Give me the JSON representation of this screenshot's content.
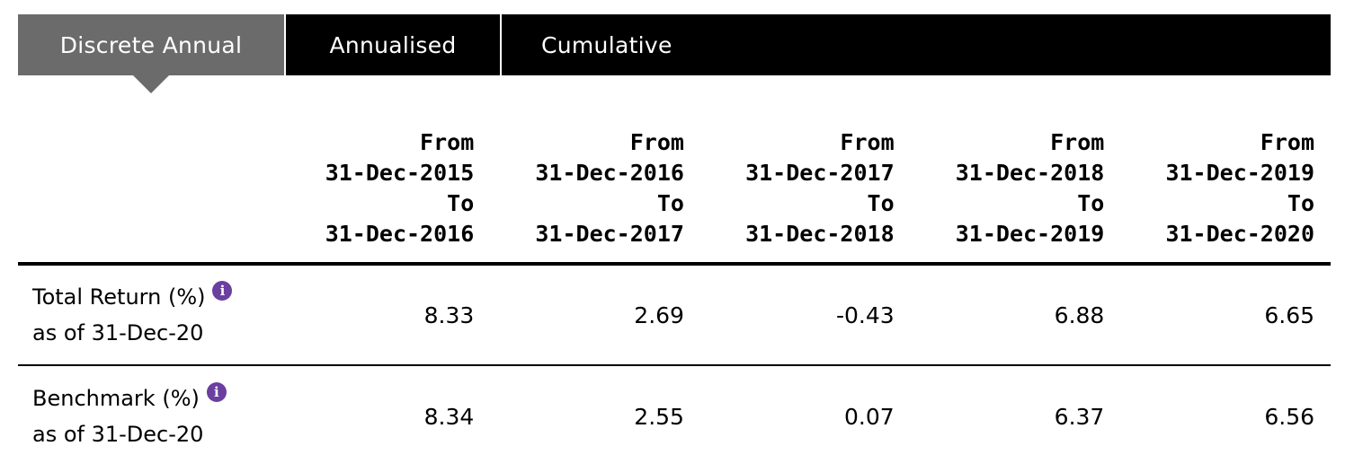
{
  "tabs": [
    {
      "label": "Discrete Annual",
      "active": true
    },
    {
      "label": "Annualised",
      "active": false
    },
    {
      "label": "Cumulative",
      "active": false
    }
  ],
  "colors": {
    "active_tab": "#6b6b6b",
    "inactive_tab": "#000000",
    "info_icon": "#6a3fa0"
  },
  "columns": [
    {
      "from_label": "From",
      "from_date": "31-Dec-2015",
      "to_label": "To",
      "to_date": "31-Dec-2016"
    },
    {
      "from_label": "From",
      "from_date": "31-Dec-2016",
      "to_label": "To",
      "to_date": "31-Dec-2017"
    },
    {
      "from_label": "From",
      "from_date": "31-Dec-2017",
      "to_label": "To",
      "to_date": "31-Dec-2018"
    },
    {
      "from_label": "From",
      "from_date": "31-Dec-2018",
      "to_label": "To",
      "to_date": "31-Dec-2019"
    },
    {
      "from_label": "From",
      "from_date": "31-Dec-2019",
      "to_label": "To",
      "to_date": "31-Dec-2020"
    }
  ],
  "rows": [
    {
      "label": "Total Return (%)",
      "sublabel": "as of 31-Dec-20",
      "info_icon": "info-icon",
      "values": [
        "8.33",
        "2.69",
        "-0.43",
        "6.88",
        "6.65"
      ]
    },
    {
      "label": "Benchmark (%)",
      "sublabel": "as of 31-Dec-20",
      "info_icon": "info-icon",
      "values": [
        "8.34",
        "2.55",
        "0.07",
        "6.37",
        "6.56"
      ]
    }
  ]
}
